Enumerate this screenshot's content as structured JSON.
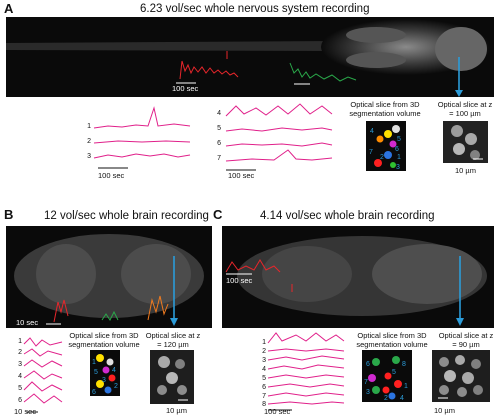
{
  "panels": {
    "A": {
      "letter": "A",
      "title": "6.23 vol/sec whole nervous system recording",
      "scalebar_red": "100 sec",
      "track_numbers_left": [
        "1",
        "2",
        "3"
      ],
      "track_numbers_right": [
        "4",
        "5",
        "6",
        "7"
      ],
      "scalebar_left": "100 sec",
      "scalebar_right": "100 sec",
      "seg_label": "Optical slice from 3D segmentation volume",
      "seg_ids": [
        "4",
        "5",
        "6",
        "7",
        "1",
        "2",
        "3"
      ],
      "zoom_label": "Optical slice at z = 100 µm",
      "zoom_scale": "10 µm"
    },
    "B": {
      "letter": "B",
      "title": "12 vol/sec whole brain recording",
      "scalebar_red": "10 sec",
      "track_numbers": [
        "1",
        "2",
        "3",
        "4",
        "5",
        "6"
      ],
      "scalebar_tracks": "10 sec",
      "seg_label": "Optical slice from 3D segmentation volume",
      "seg_ids": [
        "1",
        "5",
        "4",
        "6",
        "2",
        "3"
      ],
      "zoom_label": "Optical slice at z = 120 µm",
      "zoom_scale": "10 µm"
    },
    "C": {
      "letter": "C",
      "title": "4.14 vol/sec whole brain recording",
      "scalebar_red": "100 sec",
      "track_numbers": [
        "1",
        "2",
        "3",
        "4",
        "5",
        "6",
        "7",
        "8"
      ],
      "scalebar_tracks": "100 sec",
      "seg_label": "Optical slice from 3D segmentation volume",
      "seg_ids": [
        "6",
        "8",
        "7",
        "5",
        "3",
        "2",
        "1",
        "4"
      ],
      "zoom_label": "Optical slice at z = 90 µm",
      "zoom_scale": "10 µm"
    }
  },
  "colors": {
    "trace_magenta": "#e0208a",
    "trace_red": "#e8262b",
    "trace_green": "#2aa84a",
    "trace_orange": "#f07b20",
    "arrow_blue": "#2b9bd8"
  }
}
